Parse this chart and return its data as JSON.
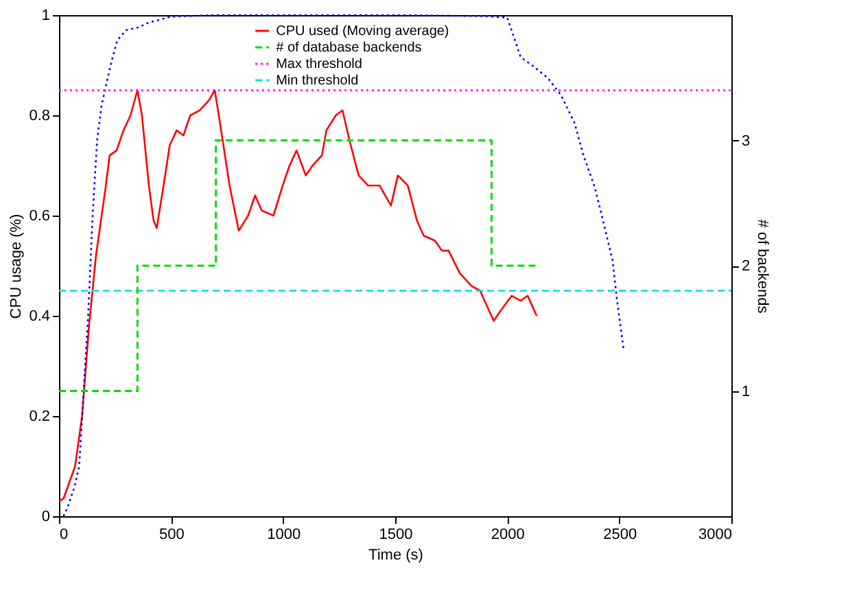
{
  "chart_data": {
    "type": "line",
    "xlabel": "Time (s)",
    "ylabel": "CPU usage (%)",
    "y2label": "# of backends",
    "xlim": [
      0,
      3000
    ],
    "xticks": [
      0,
      500,
      1000,
      1500,
      2000,
      2500,
      3000
    ],
    "ylim": [
      0,
      1
    ],
    "yticks": [
      0,
      0.2,
      0.4,
      0.6,
      0.8,
      1
    ],
    "y2lim": [
      0,
      4
    ],
    "y2ticks": [
      1,
      2,
      3
    ],
    "grid": false,
    "legend": "top",
    "marker": "none",
    "series": [
      {
        "name": "CPU used (Moving average)",
        "color": "#ff0000",
        "line_style": "solid",
        "x": [
          0,
          20,
          40,
          72,
          103,
          134,
          165,
          206,
          226,
          257,
          288,
          319,
          350,
          370,
          401,
          422,
          436,
          463,
          494,
          525,
          555,
          586,
          628,
          669,
          695,
          720,
          761,
          802,
          844,
          875,
          905,
          957,
          998,
          1029,
          1060,
          1101,
          1132,
          1173,
          1193,
          1235,
          1265,
          1296,
          1337,
          1379,
          1430,
          1481,
          1512,
          1556,
          1597,
          1627,
          1677,
          1708,
          1738,
          1788,
          1839,
          1879,
          1919,
          1940,
          1970,
          2020,
          2060,
          2091,
          2111,
          2131
        ],
        "values": [
          0.03,
          0.035,
          0.06,
          0.1,
          0.2,
          0.38,
          0.52,
          0.65,
          0.72,
          0.73,
          0.77,
          0.8,
          0.85,
          0.8,
          0.66,
          0.59,
          0.575,
          0.65,
          0.74,
          0.77,
          0.76,
          0.8,
          0.81,
          0.83,
          0.85,
          0.78,
          0.66,
          0.57,
          0.6,
          0.64,
          0.61,
          0.6,
          0.66,
          0.7,
          0.73,
          0.68,
          0.7,
          0.72,
          0.77,
          0.8,
          0.81,
          0.75,
          0.68,
          0.66,
          0.66,
          0.62,
          0.68,
          0.66,
          0.59,
          0.56,
          0.55,
          0.53,
          0.53,
          0.485,
          0.46,
          0.45,
          0.41,
          0.39,
          0.41,
          0.44,
          0.43,
          0.44,
          0.42,
          0.4
        ]
      },
      {
        "name": "# of database backends",
        "color": "#00dd00",
        "type": "step",
        "axis": "y2",
        "line_style": "dashed",
        "x": [
          0,
          350,
          700,
          1930,
          2130
        ],
        "values": [
          1,
          2,
          3,
          2,
          2
        ]
      },
      {
        "color": "#0000ff",
        "line_style": "dotted",
        "x": [
          20,
          40,
          70,
          90,
          110,
          130,
          150,
          170,
          190,
          210,
          230,
          260,
          300,
          350,
          400,
          500,
          700,
          1500,
          1899,
          2000,
          2060,
          2110,
          2180,
          2240,
          2300,
          2340,
          2390,
          2430,
          2470,
          2490,
          2520
        ],
        "values": [
          0,
          0.02,
          0.06,
          0.1,
          0.25,
          0.4,
          0.6,
          0.75,
          0.82,
          0.86,
          0.9,
          0.95,
          0.97,
          0.975,
          0.985,
          0.997,
          1,
          1,
          0.998,
          0.995,
          0.916,
          0.9,
          0.875,
          0.84,
          0.785,
          0.72,
          0.657,
          0.585,
          0.51,
          0.43,
          0.33
        ]
      }
    ],
    "ref_lines": [
      {
        "axis": "y",
        "value": 0.85,
        "label": "Max threshold",
        "color": "#ff00ff",
        "line_style": "dotted"
      },
      {
        "axis": "y",
        "value": 0.45,
        "label": "Min threshold",
        "color": "#00dddd",
        "line_style": "dashed"
      }
    ]
  }
}
